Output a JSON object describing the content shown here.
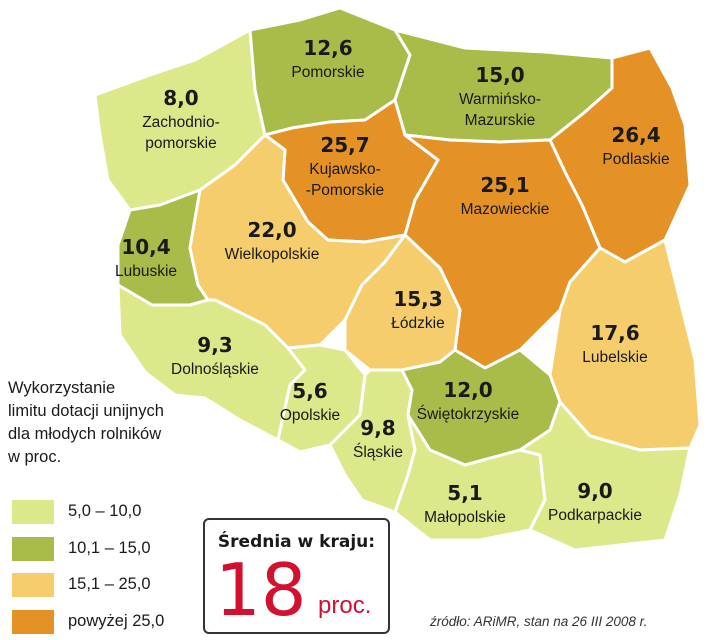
{
  "legend": {
    "title_lines": [
      "Wykorzystanie",
      "limitu dotacji unijnych",
      "dla młodych rolników",
      "w proc."
    ],
    "items": [
      {
        "label": "5,0 – 10,0",
        "color": "#dde88a"
      },
      {
        "label": "10,1 – 15,0",
        "color": "#a9bb48"
      },
      {
        "label": "15,1 – 25,0",
        "color": "#f6cd6c"
      },
      {
        "label": "powyżej 25,0",
        "color": "#e49126"
      }
    ]
  },
  "regions": [
    {
      "id": "zachodniopomorskie",
      "name_lines": [
        "Zachodnio-",
        "pomorskie"
      ],
      "value": "8,0",
      "color": "#dde88a"
    },
    {
      "id": "pomorskie",
      "name_lines": [
        "Pomorskie"
      ],
      "value": "12,6",
      "color": "#a9bb48"
    },
    {
      "id": "warminsko-mazurskie",
      "name_lines": [
        "Warmińsko-",
        "Mazurskie"
      ],
      "value": "15,0",
      "color": "#a9bb48"
    },
    {
      "id": "podlaskie",
      "name_lines": [
        "Podlaskie"
      ],
      "value": "26,4",
      "color": "#e49126"
    },
    {
      "id": "kujawsko-pomorskie",
      "name_lines": [
        "Kujawsko-",
        "-Pomorskie"
      ],
      "value": "25,7",
      "color": "#e49126"
    },
    {
      "id": "mazowieckie",
      "name_lines": [
        "Mazowieckie"
      ],
      "value": "25,1",
      "color": "#e49126"
    },
    {
      "id": "lubuskie",
      "name_lines": [
        "Lubuskie"
      ],
      "value": "10,4",
      "color": "#a9bb48"
    },
    {
      "id": "wielkopolskie",
      "name_lines": [
        "Wielkopolskie"
      ],
      "value": "22,0",
      "color": "#f6cd6c"
    },
    {
      "id": "lodzkie",
      "name_lines": [
        "Łódzkie"
      ],
      "value": "15,3",
      "color": "#f6cd6c"
    },
    {
      "id": "lubelskie",
      "name_lines": [
        "Lubelskie"
      ],
      "value": "17,6",
      "color": "#f6cd6c"
    },
    {
      "id": "dolnoslaskie",
      "name_lines": [
        "Dolnośląskie"
      ],
      "value": "9,3",
      "color": "#dde88a"
    },
    {
      "id": "opolskie",
      "name_lines": [
        "Opolskie"
      ],
      "value": "5,6",
      "color": "#dde88a"
    },
    {
      "id": "slaskie",
      "name_lines": [
        "Śląskie"
      ],
      "value": "9,8",
      "color": "#dde88a"
    },
    {
      "id": "swietokrzyskie",
      "name_lines": [
        "Świętokrzyskie"
      ],
      "value": "12,0",
      "color": "#a9bb48"
    },
    {
      "id": "malopolskie",
      "name_lines": [
        "Małopolskie"
      ],
      "value": "5,1",
      "color": "#dde88a"
    },
    {
      "id": "podkarpackie",
      "name_lines": [
        "Podkarpackie"
      ],
      "value": "9,0",
      "color": "#dde88a"
    }
  ],
  "average": {
    "label": "Średnia w kraju:",
    "value": "18",
    "unit": "proc."
  },
  "source": "źródło:  ARiMR, stan na 26 III 2008 r."
}
